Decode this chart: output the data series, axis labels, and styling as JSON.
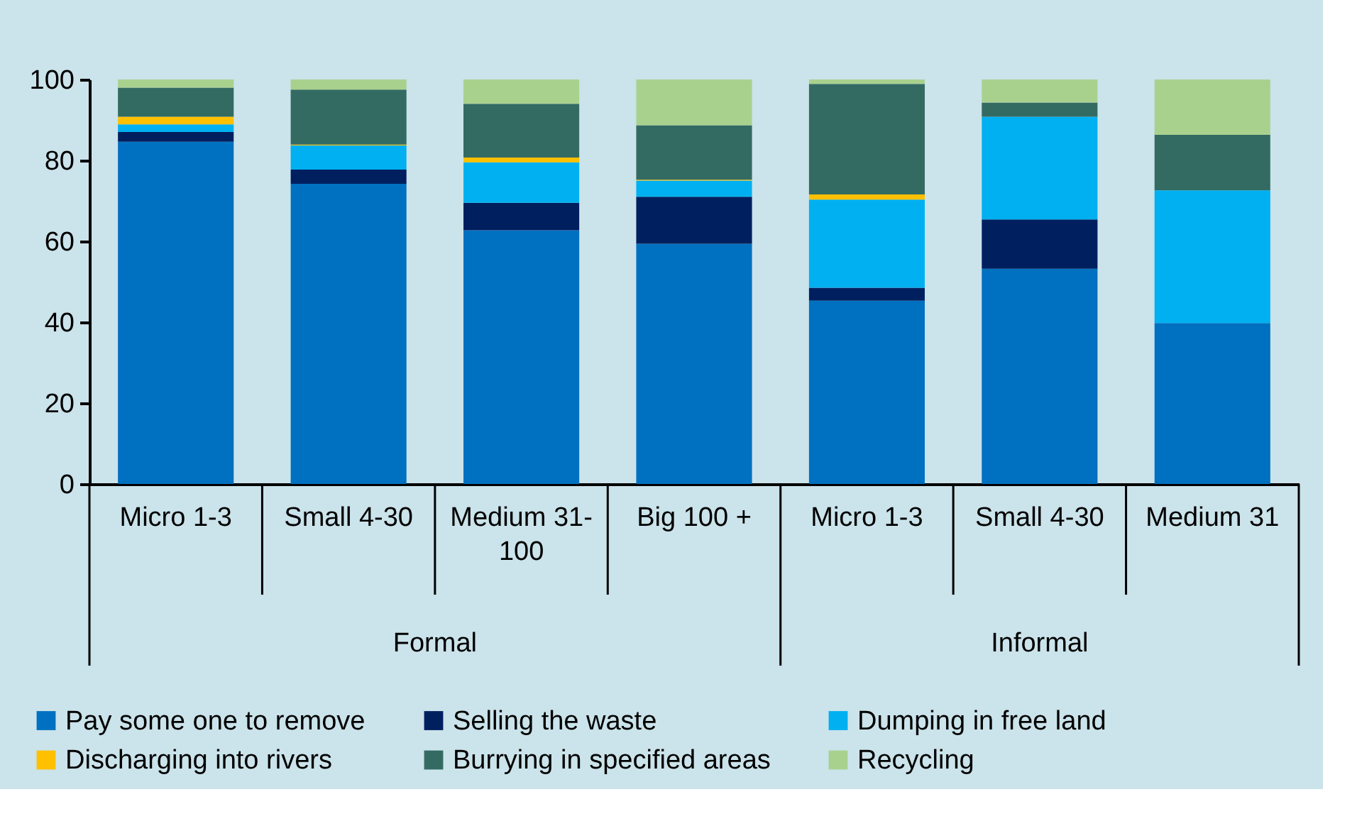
{
  "chart_data": {
    "type": "bar",
    "stacked": true,
    "categories": [
      "Micro 1-3",
      "Small 4-30",
      "Medium 31-100",
      "Big 100 +",
      "Micro 1-3",
      "Small 4-30",
      "Medium 31"
    ],
    "series": [
      {
        "name": "Pay some one to remove",
        "color": "#0070c0",
        "values": [
          84.6,
          74.2,
          62.7,
          59.4,
          45.3,
          53.2,
          39.8
        ]
      },
      {
        "name": "Selling the waste",
        "color": "#001f5f",
        "values": [
          2.4,
          3.5,
          6.8,
          11.6,
          3.2,
          12.2,
          0
        ]
      },
      {
        "name": "Dumping in free land",
        "color": "#00b0f0",
        "values": [
          1.9,
          6.0,
          10.0,
          4.0,
          21.8,
          25.4,
          32.8
        ]
      },
      {
        "name": "Discharging into rivers",
        "color": "#ffc000",
        "values": [
          1.9,
          0.2,
          1.2,
          0.2,
          1.3,
          0,
          0
        ]
      },
      {
        "name": "Burrying in specified areas",
        "color": "#336b63",
        "values": [
          7.2,
          13.6,
          13.3,
          13.5,
          27.3,
          3.5,
          13.7
        ]
      },
      {
        "name": "Recycling",
        "color": "#a9d18e",
        "values": [
          2.0,
          2.5,
          6.0,
          11.3,
          1.1,
          5.7,
          13.7
        ]
      }
    ],
    "annotations": [
      "Formal",
      "Informal"
    ],
    "ylim": [
      0,
      100
    ],
    "yticks": [
      0,
      20,
      40,
      60,
      80,
      100
    ],
    "grid": false,
    "legend": "bottom"
  }
}
